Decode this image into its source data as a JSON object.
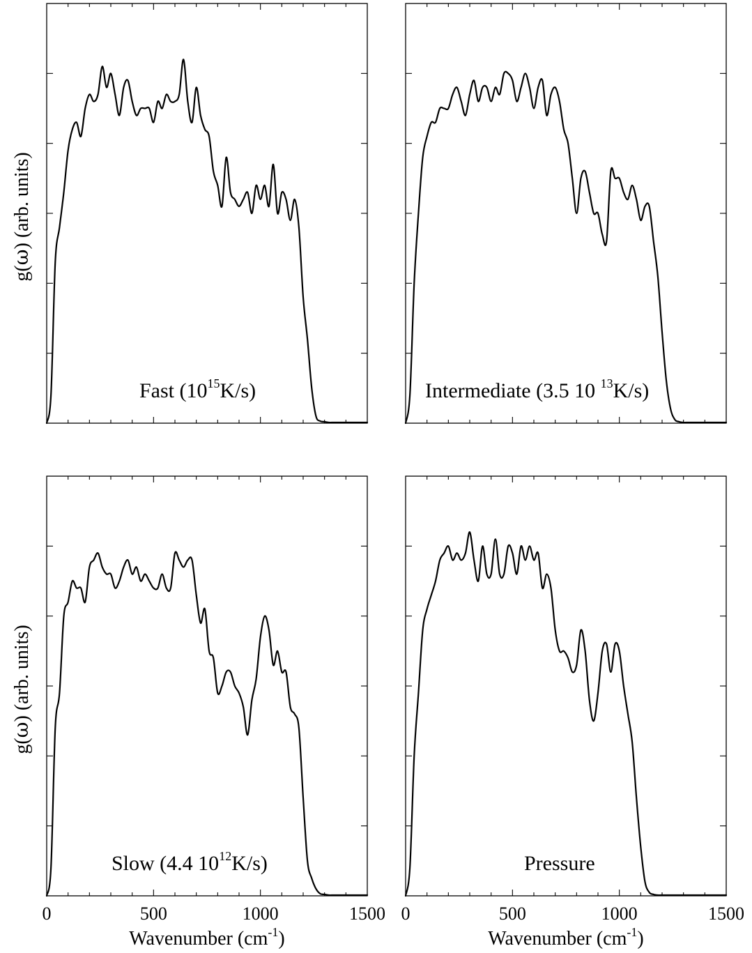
{
  "chart_data": [
    {
      "type": "line",
      "panel": "top-left",
      "annotation": {
        "pre": "Fast (10",
        "sup": "15",
        "post": "K/s)"
      },
      "ylabel": {
        "a": "g(",
        "b": "ω",
        "c": ")   (arb. units)"
      },
      "xlabel": null,
      "x_tick_labels": [],
      "xlim": [
        0,
        1500
      ],
      "ylim": [
        0,
        6
      ],
      "series": [
        {
          "x": [
            0,
            20,
            40,
            60,
            80,
            100,
            120,
            140,
            160,
            180,
            200,
            220,
            240,
            260,
            280,
            300,
            320,
            340,
            360,
            380,
            400,
            420,
            440,
            460,
            480,
            500,
            520,
            540,
            560,
            580,
            600,
            620,
            640,
            660,
            680,
            700,
            720,
            740,
            760,
            780,
            800,
            820,
            840,
            860,
            880,
            900,
            920,
            940,
            960,
            980,
            1000,
            1020,
            1040,
            1060,
            1080,
            1100,
            1120,
            1140,
            1160,
            1180,
            1200,
            1220,
            1240,
            1260,
            1280,
            1300,
            1320,
            1340,
            1360,
            1380,
            1400,
            1450,
            1500
          ],
          "y": [
            0.0,
            0.4,
            2.3,
            2.8,
            3.3,
            3.9,
            4.2,
            4.3,
            4.1,
            4.5,
            4.7,
            4.6,
            4.7,
            5.1,
            4.8,
            5.0,
            4.7,
            4.4,
            4.8,
            4.9,
            4.6,
            4.4,
            4.5,
            4.5,
            4.5,
            4.3,
            4.6,
            4.5,
            4.7,
            4.6,
            4.6,
            4.7,
            5.2,
            4.6,
            4.3,
            4.8,
            4.4,
            4.2,
            4.1,
            3.6,
            3.4,
            3.1,
            3.8,
            3.3,
            3.2,
            3.1,
            3.2,
            3.3,
            3.0,
            3.4,
            3.2,
            3.4,
            3.1,
            3.7,
            3.0,
            3.3,
            3.2,
            2.9,
            3.2,
            2.8,
            1.8,
            1.2,
            0.5,
            0.1,
            0.03,
            0.02,
            0.01,
            0.01,
            0.01,
            0.01,
            0.01,
            0.01,
            0.01
          ]
        }
      ]
    },
    {
      "type": "line",
      "panel": "top-right",
      "annotation": {
        "pre": "Intermediate (3.5 10 ",
        "sup": "13",
        "post": "K/s)"
      },
      "ylabel": null,
      "xlabel": null,
      "x_tick_labels": [],
      "xlim": [
        0,
        1500
      ],
      "ylim": [
        0,
        6
      ],
      "series": [
        {
          "x": [
            0,
            20,
            40,
            60,
            80,
            100,
            120,
            140,
            160,
            180,
            200,
            220,
            240,
            260,
            280,
            300,
            320,
            340,
            360,
            380,
            400,
            420,
            440,
            460,
            480,
            500,
            520,
            540,
            560,
            580,
            600,
            620,
            640,
            660,
            680,
            700,
            720,
            740,
            760,
            780,
            800,
            820,
            840,
            860,
            880,
            900,
            920,
            940,
            960,
            980,
            1000,
            1020,
            1040,
            1060,
            1080,
            1100,
            1120,
            1140,
            1160,
            1180,
            1200,
            1220,
            1240,
            1260,
            1280,
            1300,
            1320,
            1340,
            1360,
            1380,
            1400,
            1450,
            1500
          ],
          "y": [
            0.0,
            0.4,
            2.0,
            3.0,
            3.8,
            4.1,
            4.3,
            4.3,
            4.5,
            4.5,
            4.5,
            4.7,
            4.8,
            4.6,
            4.4,
            4.7,
            4.9,
            4.6,
            4.8,
            4.8,
            4.6,
            4.8,
            4.7,
            5.0,
            5.0,
            4.9,
            4.6,
            4.8,
            5.0,
            4.8,
            4.5,
            4.8,
            4.9,
            4.4,
            4.7,
            4.8,
            4.6,
            4.2,
            4.0,
            3.5,
            3.0,
            3.5,
            3.6,
            3.3,
            3.0,
            3.0,
            2.7,
            2.6,
            3.6,
            3.5,
            3.5,
            3.3,
            3.2,
            3.4,
            3.2,
            2.9,
            3.1,
            3.1,
            2.6,
            2.1,
            1.3,
            0.6,
            0.2,
            0.05,
            0.02,
            0.01,
            0.01,
            0.01,
            0.01,
            0.01,
            0.01,
            0.01,
            0.01
          ]
        }
      ]
    },
    {
      "type": "line",
      "panel": "bottom-left",
      "annotation": {
        "pre": "Slow (4.4 10",
        "sup": "12",
        "post": "K/s)"
      },
      "ylabel": {
        "a": "g(",
        "b": "ω",
        "c": ")   (arb. units)"
      },
      "xlabel": {
        "pre": "Wavenumber (cm",
        "sup": "-1",
        "post": ")"
      },
      "x_tick_labels": [
        "0",
        "500",
        "1000",
        "1500 "
      ],
      "xlim": [
        0,
        1500
      ],
      "ylim": [
        0,
        6
      ],
      "series": [
        {
          "x": [
            0,
            20,
            40,
            60,
            80,
            100,
            120,
            140,
            160,
            180,
            200,
            220,
            240,
            260,
            280,
            300,
            320,
            340,
            360,
            380,
            400,
            420,
            440,
            460,
            480,
            500,
            520,
            540,
            560,
            580,
            600,
            620,
            640,
            660,
            680,
            700,
            720,
            740,
            760,
            780,
            800,
            820,
            840,
            860,
            880,
            900,
            920,
            940,
            960,
            980,
            1000,
            1020,
            1040,
            1060,
            1080,
            1100,
            1120,
            1140,
            1160,
            1180,
            1200,
            1220,
            1240,
            1260,
            1280,
            1300,
            1320,
            1340,
            1360,
            1380,
            1400,
            1450,
            1500
          ],
          "y": [
            0.0,
            0.4,
            2.4,
            2.9,
            4.0,
            4.2,
            4.5,
            4.4,
            4.4,
            4.2,
            4.7,
            4.8,
            4.9,
            4.7,
            4.6,
            4.6,
            4.4,
            4.5,
            4.7,
            4.8,
            4.6,
            4.7,
            4.5,
            4.6,
            4.5,
            4.4,
            4.4,
            4.6,
            4.4,
            4.4,
            4.9,
            4.8,
            4.7,
            4.8,
            4.8,
            4.3,
            3.9,
            4.1,
            3.5,
            3.4,
            2.9,
            3.0,
            3.2,
            3.2,
            3.0,
            2.9,
            2.7,
            2.3,
            2.8,
            3.1,
            3.7,
            4.0,
            3.8,
            3.3,
            3.5,
            3.2,
            3.2,
            2.7,
            2.6,
            2.4,
            1.4,
            0.5,
            0.25,
            0.1,
            0.03,
            0.02,
            0.01,
            0.01,
            0.01,
            0.01,
            0.01,
            0.01,
            0.01
          ]
        }
      ]
    },
    {
      "type": "line",
      "panel": "bottom-right",
      "annotation": {
        "pre": "Pressure",
        "sup": "",
        "post": ""
      },
      "ylabel": null,
      "xlabel": {
        "pre": "Wavenumber (cm",
        "sup": "-1",
        "post": ")"
      },
      "x_tick_labels": [
        "0",
        "500",
        "1000",
        "1500"
      ],
      "xlim": [
        0,
        1500
      ],
      "ylim": [
        0,
        6
      ],
      "series": [
        {
          "x": [
            0,
            20,
            40,
            60,
            80,
            100,
            120,
            140,
            160,
            180,
            200,
            220,
            240,
            260,
            280,
            300,
            320,
            340,
            360,
            380,
            400,
            420,
            440,
            460,
            480,
            500,
            520,
            540,
            560,
            580,
            600,
            620,
            640,
            660,
            680,
            700,
            720,
            740,
            760,
            780,
            800,
            820,
            840,
            860,
            880,
            900,
            920,
            940,
            960,
            980,
            1000,
            1020,
            1040,
            1060,
            1080,
            1100,
            1120,
            1140,
            1160,
            1180,
            1200,
            1220,
            1240,
            1260,
            1280,
            1300,
            1320,
            1340,
            1360,
            1380,
            1400,
            1450,
            1500
          ],
          "y": [
            0.0,
            0.4,
            2.0,
            2.9,
            3.8,
            4.1,
            4.3,
            4.5,
            4.8,
            4.9,
            5.0,
            4.8,
            4.9,
            4.8,
            4.9,
            5.2,
            4.8,
            4.5,
            5.0,
            4.6,
            4.6,
            5.1,
            4.6,
            4.6,
            5.0,
            4.9,
            4.6,
            5.0,
            4.8,
            5.0,
            4.8,
            4.9,
            4.4,
            4.6,
            4.4,
            3.8,
            3.5,
            3.5,
            3.4,
            3.2,
            3.3,
            3.8,
            3.5,
            2.8,
            2.5,
            2.9,
            3.5,
            3.6,
            3.2,
            3.6,
            3.5,
            3.0,
            2.6,
            2.2,
            1.4,
            0.7,
            0.2,
            0.05,
            0.02,
            0.01,
            0.01,
            0.01,
            0.01,
            0.01,
            0.01,
            0.01,
            0.01,
            0.01,
            0.01,
            0.01,
            0.01,
            0.01,
            0.01
          ]
        }
      ]
    }
  ]
}
